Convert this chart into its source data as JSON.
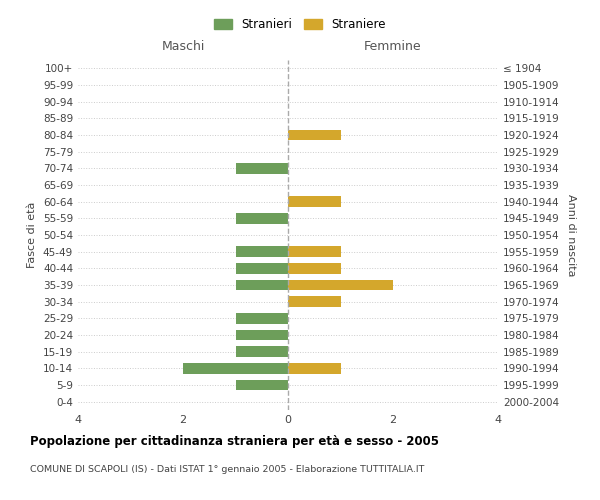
{
  "age_groups": [
    "0-4",
    "5-9",
    "10-14",
    "15-19",
    "20-24",
    "25-29",
    "30-34",
    "35-39",
    "40-44",
    "45-49",
    "50-54",
    "55-59",
    "60-64",
    "65-69",
    "70-74",
    "75-79",
    "80-84",
    "85-89",
    "90-94",
    "95-99",
    "100+"
  ],
  "birth_years": [
    "2000-2004",
    "1995-1999",
    "1990-1994",
    "1985-1989",
    "1980-1984",
    "1975-1979",
    "1970-1974",
    "1965-1969",
    "1960-1964",
    "1955-1959",
    "1950-1954",
    "1945-1949",
    "1940-1944",
    "1935-1939",
    "1930-1934",
    "1925-1929",
    "1920-1924",
    "1915-1919",
    "1910-1914",
    "1905-1909",
    "≤ 1904"
  ],
  "maschi": [
    0,
    1,
    2,
    1,
    1,
    1,
    0,
    1,
    1,
    1,
    0,
    1,
    0,
    0,
    1,
    0,
    0,
    0,
    0,
    0,
    0
  ],
  "femmine": [
    0,
    0,
    1,
    0,
    0,
    0,
    1,
    2,
    1,
    1,
    0,
    0,
    1,
    0,
    0,
    0,
    1,
    0,
    0,
    0,
    0
  ],
  "color_maschi": "#6d9e5a",
  "color_femmine": "#d4a72c",
  "title": "Popolazione per cittadinanza straniera per età e sesso - 2005",
  "subtitle": "COMUNE DI SCAPOLI (IS) - Dati ISTAT 1° gennaio 2005 - Elaborazione TUTTITALIA.IT",
  "legend_stranieri": "Stranieri",
  "legend_straniere": "Straniere",
  "xlabel_left": "Maschi",
  "xlabel_right": "Femmine",
  "ylabel_left": "Fasce di età",
  "ylabel_right": "Anni di nascita",
  "xlim": 4,
  "background_color": "#ffffff",
  "grid_color": "#cccccc"
}
